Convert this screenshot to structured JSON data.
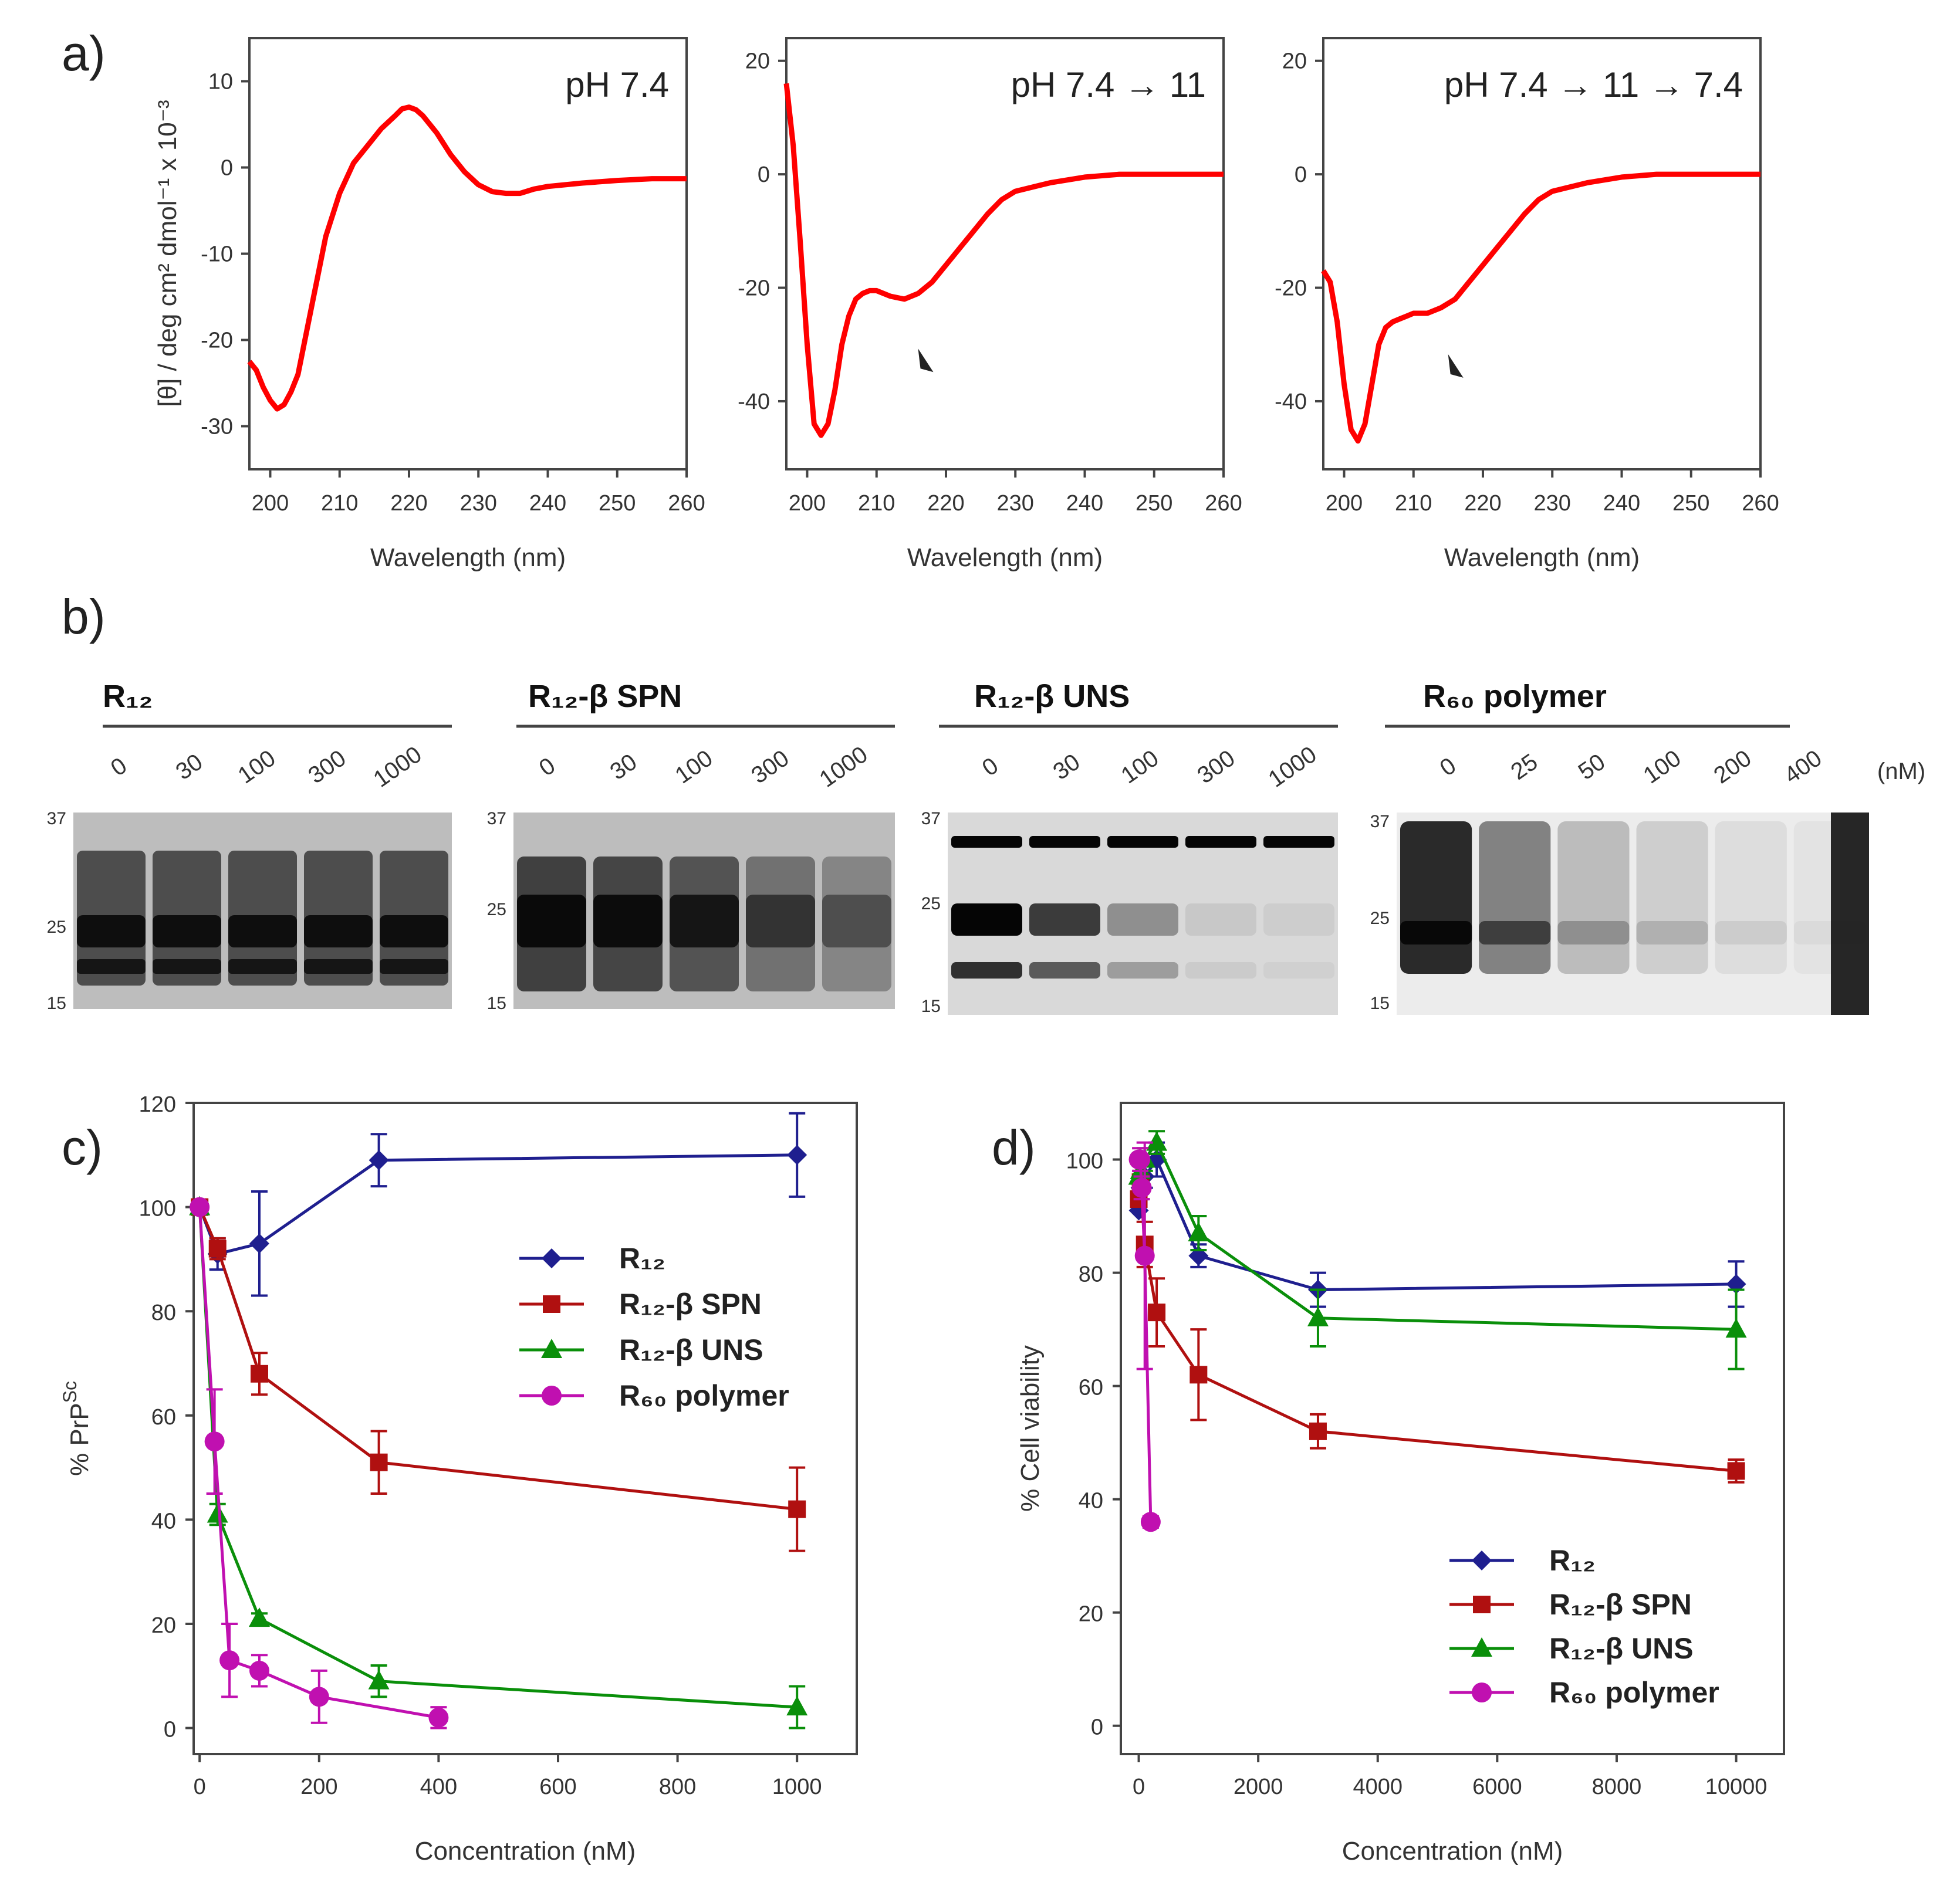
{
  "panel_labels": {
    "a": "a)",
    "b": "b)",
    "c": "c)",
    "d": "d)"
  },
  "cd_panels": [
    {
      "title": "pH 7.4",
      "xlabel": "Wavelength (nm)",
      "ylabel": "[θ] / deg cm² dmol⁻¹ x 10⁻³",
      "xticks": [
        "200",
        "210",
        "220",
        "230",
        "240",
        "250",
        "260"
      ],
      "yticks": [
        "10",
        "0",
        "-10",
        "-20",
        "-30"
      ]
    },
    {
      "title": "pH 7.4 → 11",
      "xlabel": "Wavelength (nm)",
      "ylabel": "",
      "xticks": [
        "200",
        "210",
        "220",
        "230",
        "240",
        "250",
        "260"
      ],
      "yticks": [
        "20",
        "0",
        "-20",
        "-40"
      ]
    },
    {
      "title": "pH 7.4 → 11 → 7.4",
      "xlabel": "Wavelength (nm)",
      "ylabel": "",
      "xticks": [
        "200",
        "210",
        "220",
        "230",
        "240",
        "250",
        "260"
      ],
      "yticks": [
        "20",
        "0",
        "-20",
        "-40"
      ]
    }
  ],
  "gels": [
    {
      "title": "R₁₂",
      "lanes": [
        "0",
        "30",
        "100",
        "300",
        "1000"
      ],
      "markers": [
        "37",
        "25",
        "15"
      ]
    },
    {
      "title": "R₁₂-β SPN",
      "lanes": [
        "0",
        "30",
        "100",
        "300",
        "1000"
      ],
      "markers": [
        "37",
        "25",
        "15"
      ]
    },
    {
      "title": "R₁₂-β UNS",
      "lanes": [
        "0",
        "30",
        "100",
        "300",
        "1000"
      ],
      "markers": [
        "37",
        "25",
        "15"
      ]
    },
    {
      "title": "R₆₀ polymer",
      "lanes": [
        "0",
        "25",
        "50",
        "100",
        "200",
        "400"
      ],
      "markers": [
        "37",
        "25",
        "15"
      ]
    }
  ],
  "gel_unit": "(nM)",
  "chart_data": [
    {
      "type": "line",
      "panel": "a-1",
      "title": "pH 7.4",
      "xlabel": "Wavelength (nm)",
      "ylabel": "[θ] / deg cm² dmol⁻¹ x 10⁻³",
      "xlim": [
        197,
        260
      ],
      "ylim": [
        -35,
        15
      ],
      "series": [
        {
          "color": "#ff0000",
          "x": [
            197,
            198,
            199,
            200,
            201,
            202,
            203,
            204,
            205,
            206,
            207,
            208,
            210,
            212,
            214,
            216,
            218,
            219,
            220,
            221,
            222,
            224,
            226,
            228,
            230,
            232,
            234,
            236,
            238,
            240,
            245,
            250,
            255,
            260
          ],
          "y": [
            -22.5,
            -23.5,
            -25.5,
            -27,
            -28,
            -27.5,
            -26,
            -24,
            -20,
            -16,
            -12,
            -8,
            -3,
            0.5,
            2.5,
            4.5,
            6,
            6.8,
            7,
            6.7,
            6,
            4,
            1.5,
            -0.5,
            -2,
            -2.8,
            -3,
            -3,
            -2.5,
            -2.2,
            -1.8,
            -1.5,
            -1.3,
            -1.3
          ]
        }
      ]
    },
    {
      "type": "line",
      "panel": "a-2",
      "title": "pH 7.4 → 11",
      "xlabel": "Wavelength (nm)",
      "xlim": [
        197,
        260
      ],
      "ylim": [
        -52,
        24
      ],
      "series": [
        {
          "color": "#ff0000",
          "x": [
            197,
            198,
            199,
            200,
            201,
            202,
            203,
            204,
            205,
            206,
            207,
            208,
            209,
            210,
            212,
            214,
            216,
            218,
            220,
            222,
            224,
            226,
            228,
            230,
            235,
            240,
            245,
            250,
            255,
            260
          ],
          "y": [
            16,
            5,
            -12,
            -30,
            -44,
            -46,
            -44,
            -38,
            -30,
            -25,
            -22,
            -21,
            -20.5,
            -20.5,
            -21.5,
            -22,
            -21,
            -19,
            -16,
            -13,
            -10,
            -7,
            -4.5,
            -3,
            -1.5,
            -0.5,
            0,
            0,
            0,
            0
          ]
        }
      ],
      "annotations": [
        {
          "type": "arrow",
          "x": 217,
          "y": -33
        }
      ]
    },
    {
      "type": "line",
      "panel": "a-3",
      "title": "pH 7.4 → 11 → 7.4",
      "xlabel": "Wavelength (nm)",
      "xlim": [
        197,
        260
      ],
      "ylim": [
        -52,
        24
      ],
      "series": [
        {
          "color": "#ff0000",
          "x": [
            197,
            198,
            199,
            200,
            201,
            202,
            203,
            204,
            205,
            206,
            207,
            208,
            209,
            210,
            212,
            214,
            216,
            218,
            220,
            222,
            224,
            226,
            228,
            230,
            235,
            240,
            245,
            250,
            255,
            260
          ],
          "y": [
            -17,
            -19,
            -26,
            -37,
            -45,
            -47,
            -44,
            -37,
            -30,
            -27,
            -26,
            -25.5,
            -25,
            -24.5,
            -24.5,
            -23.5,
            -22,
            -19,
            -16,
            -13,
            -10,
            -7,
            -4.5,
            -3,
            -1.5,
            -0.5,
            0,
            0,
            0,
            0
          ]
        }
      ],
      "annotations": [
        {
          "type": "arrow",
          "x": 216,
          "y": -34
        }
      ]
    },
    {
      "type": "line",
      "panel": "c",
      "xlabel": "Concentration (nM)",
      "ylabel": "% PrPSc",
      "xlim": [
        -10,
        1100
      ],
      "ylim": [
        -5,
        120
      ],
      "xticks": [
        0,
        200,
        400,
        600,
        800,
        1000
      ],
      "yticks": [
        0,
        20,
        40,
        60,
        80,
        100,
        120
      ],
      "legend_position": "upper-middle",
      "series": [
        {
          "name": "R₁₂",
          "color": "#1f1f8f",
          "marker": "diamond",
          "x": [
            0,
            30,
            100,
            300,
            1000
          ],
          "y": [
            100,
            91,
            93,
            109,
            110
          ],
          "err": [
            0,
            3,
            10,
            5,
            8
          ]
        },
        {
          "name": "R₁₂-β SPN",
          "color": "#b01010",
          "marker": "square",
          "x": [
            0,
            30,
            100,
            300,
            1000
          ],
          "y": [
            100,
            92,
            68,
            51,
            42
          ],
          "err": [
            0,
            2,
            4,
            6,
            8
          ]
        },
        {
          "name": "R₁₂-β UNS",
          "color": "#0a8f0a",
          "marker": "triangle",
          "x": [
            0,
            30,
            100,
            300,
            1000
          ],
          "y": [
            100,
            41,
            21,
            9,
            4
          ],
          "err": [
            0,
            2,
            1,
            3,
            4
          ]
        },
        {
          "name": "R₆₀ polymer",
          "color": "#c010b0",
          "marker": "circle",
          "x": [
            0,
            25,
            50,
            100,
            200,
            400
          ],
          "y": [
            100,
            55,
            13,
            11,
            6,
            2
          ],
          "err": [
            0,
            10,
            7,
            3,
            5,
            2
          ]
        }
      ]
    },
    {
      "type": "line",
      "panel": "d",
      "xlabel": "Concentration (nM)",
      "ylabel": "% Cell viability",
      "xlim": [
        -300,
        10800
      ],
      "ylim": [
        -5,
        110
      ],
      "xticks": [
        0,
        2000,
        4000,
        6000,
        8000,
        10000
      ],
      "yticks": [
        0,
        20,
        40,
        60,
        80,
        100
      ],
      "legend_position": "lower-right",
      "series": [
        {
          "name": "R₁₂",
          "color": "#1f1f8f",
          "marker": "diamond",
          "x": [
            0,
            30,
            100,
            300,
            1000,
            3000,
            10000
          ],
          "y": [
            91,
            95,
            97,
            100,
            83,
            77,
            78
          ],
          "err": [
            0,
            2,
            2,
            3,
            2,
            3,
            4
          ]
        },
        {
          "name": "R₁₂-β SPN",
          "color": "#b01010",
          "marker": "square",
          "x": [
            0,
            30,
            100,
            300,
            1000,
            3000,
            10000
          ],
          "y": [
            93,
            96,
            85,
            73,
            62,
            52,
            45
          ],
          "err": [
            0,
            2,
            4,
            6,
            8,
            3,
            2
          ]
        },
        {
          "name": "R₁₂-β UNS",
          "color": "#0a8f0a",
          "marker": "triangle",
          "x": [
            0,
            30,
            100,
            300,
            1000,
            3000,
            10000
          ],
          "y": [
            97,
            98,
            100,
            103,
            87,
            72,
            70
          ],
          "err": [
            0,
            2,
            2,
            2,
            3,
            5,
            7
          ]
        },
        {
          "name": "R₆₀ polymer",
          "color": "#c010b0",
          "marker": "circle",
          "x": [
            0,
            25,
            50,
            100,
            200
          ],
          "y": [
            100,
            100,
            95,
            83,
            36
          ],
          "err": [
            0,
            2,
            2,
            20,
            1
          ]
        }
      ]
    }
  ]
}
